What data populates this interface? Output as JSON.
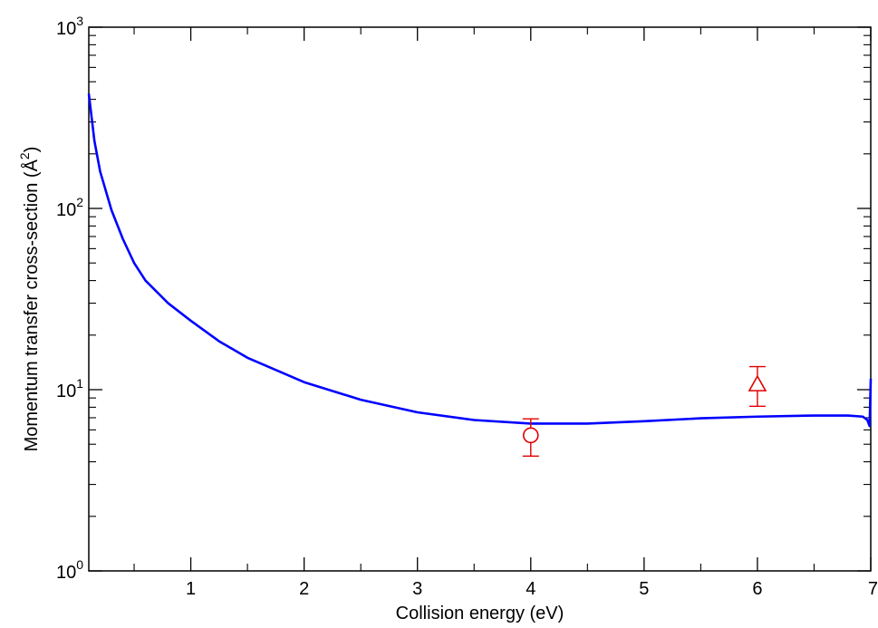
{
  "chart_data": {
    "type": "line",
    "xlabel": "Collision energy (eV)",
    "ylabel_prefix": "Momentum transfer cross-section (",
    "ylabel_unit_base": "Å",
    "ylabel_unit_exp": "2",
    "ylabel_suffix": ")",
    "xlim": [
      0.1,
      7.0
    ],
    "ylim": [
      1,
      1000
    ],
    "yscale": "log",
    "grid": false,
    "x_major_ticks": [
      1,
      2,
      3,
      4,
      5,
      6,
      7
    ],
    "x_tick_labels": [
      "1",
      "2",
      "3",
      "4",
      "5",
      "6",
      "7"
    ],
    "y_major_ticks": [
      {
        "value": 1,
        "base": "10",
        "exp": "0"
      },
      {
        "value": 10,
        "base": "10",
        "exp": "1"
      },
      {
        "value": 100,
        "base": "10",
        "exp": "2"
      },
      {
        "value": 1000,
        "base": "10",
        "exp": "3"
      }
    ],
    "series": [
      {
        "kind": "line",
        "color": "#0000ff",
        "x": [
          0.1,
          0.15,
          0.2,
          0.3,
          0.4,
          0.5,
          0.6,
          0.8,
          1.0,
          1.25,
          1.5,
          2.0,
          2.5,
          3.0,
          3.5,
          4.0,
          4.5,
          5.0,
          5.5,
          6.0,
          6.5,
          6.8,
          6.93,
          6.97,
          6.99,
          7.0
        ],
        "y": [
          430,
          235,
          160,
          98,
          68,
          50,
          40,
          30,
          24,
          18.5,
          15,
          11,
          8.8,
          7.5,
          6.8,
          6.5,
          6.5,
          6.7,
          6.95,
          7.1,
          7.2,
          7.2,
          7.1,
          6.8,
          6.3,
          11.5
        ]
      },
      {
        "kind": "errorbar",
        "marker": "circle",
        "color": "#e00000",
        "points": [
          {
            "x": 4.0,
            "y": 5.6,
            "yerr_low": 4.3,
            "yerr_high": 6.9
          }
        ]
      },
      {
        "kind": "errorbar",
        "marker": "triangle",
        "color": "#e00000",
        "points": [
          {
            "x": 6.0,
            "y": 10.7,
            "yerr_low": 8.1,
            "yerr_high": 13.4
          }
        ]
      }
    ]
  }
}
